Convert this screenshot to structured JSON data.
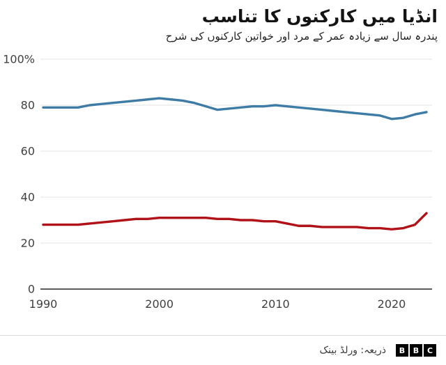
{
  "header": {
    "title": "انڈیا میں کارکنوں کا تناسب",
    "subtitle": "پندرہ سال سے زیادہ عمر کے مرد اور خواتین کارکنوں کی شرح"
  },
  "footer": {
    "source": "ذریعہ: ورلڈ بینک",
    "logo_letters": [
      "B",
      "B",
      "C"
    ]
  },
  "chart_data": {
    "type": "line",
    "title": "انڈیا میں کارکنوں کا تناسب",
    "subtitle": "پندرہ سال سے زیادہ عمر کے مرد اور خواتین کارکنوں کی شرح",
    "x": [
      1990,
      1991,
      1992,
      1993,
      1994,
      1995,
      1996,
      1997,
      1998,
      1999,
      2000,
      2001,
      2002,
      2003,
      2004,
      2005,
      2006,
      2007,
      2008,
      2009,
      2010,
      2011,
      2012,
      2013,
      2014,
      2015,
      2016,
      2017,
      2018,
      2019,
      2020,
      2021,
      2022,
      2023
    ],
    "series": [
      {
        "name": "blue",
        "color": "#3E7CA6",
        "values": [
          79,
          79,
          79,
          79,
          80,
          80.5,
          81,
          81.5,
          82,
          82.5,
          83,
          82.5,
          82,
          81,
          79.5,
          78,
          78.5,
          79,
          79.5,
          79.5,
          80,
          79.5,
          79,
          78.5,
          78,
          77.5,
          77,
          76.5,
          76,
          75.5,
          74,
          74.5,
          76,
          77
        ]
      },
      {
        "name": "red",
        "color": "#B01218",
        "values": [
          28,
          28,
          28,
          28,
          28.5,
          29,
          29.5,
          30,
          30.5,
          30.5,
          31,
          31,
          31,
          31,
          31,
          30.5,
          30.5,
          30,
          30,
          29.5,
          29.5,
          28.5,
          27.5,
          27.5,
          27,
          27,
          27,
          27,
          26.5,
          26.5,
          26,
          26.5,
          28,
          33
        ]
      }
    ],
    "xlabel": "",
    "ylabel": "",
    "ylim": [
      0,
      100
    ],
    "yticks": [
      0,
      20,
      40,
      60,
      80,
      100
    ],
    "ytick_labels": [
      "0",
      "20",
      "40",
      "60",
      "80",
      "100%"
    ],
    "xticks": [
      1990,
      2000,
      2010,
      2020
    ],
    "grid": true,
    "legend_position": "none",
    "grid_color": "#e3e3e3",
    "axis_color": "#262626",
    "tick_label_color": "#404040"
  }
}
